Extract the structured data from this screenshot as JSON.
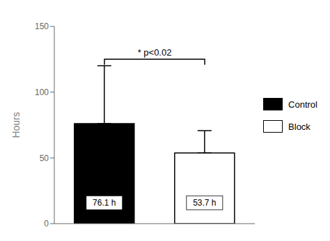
{
  "chart_data": {
    "type": "bar",
    "categories": [
      "Control",
      "Block"
    ],
    "values": [
      76.1,
      53.7
    ],
    "value_labels": [
      "76.1 h",
      "53.7 h"
    ],
    "data_labels": true,
    "errors_up": [
      44.0,
      17.0
    ],
    "errors_down": [
      0,
      0
    ],
    "colors": [
      "#000000",
      "#ffffff"
    ],
    "ylabel": "Hours",
    "ylim": [
      0,
      150
    ],
    "yticks": [
      0,
      50,
      100,
      150
    ],
    "tick_labels": "y",
    "legend": "right",
    "annotations": [
      {
        "text": "* p<0.02",
        "y": 125
      }
    ]
  }
}
